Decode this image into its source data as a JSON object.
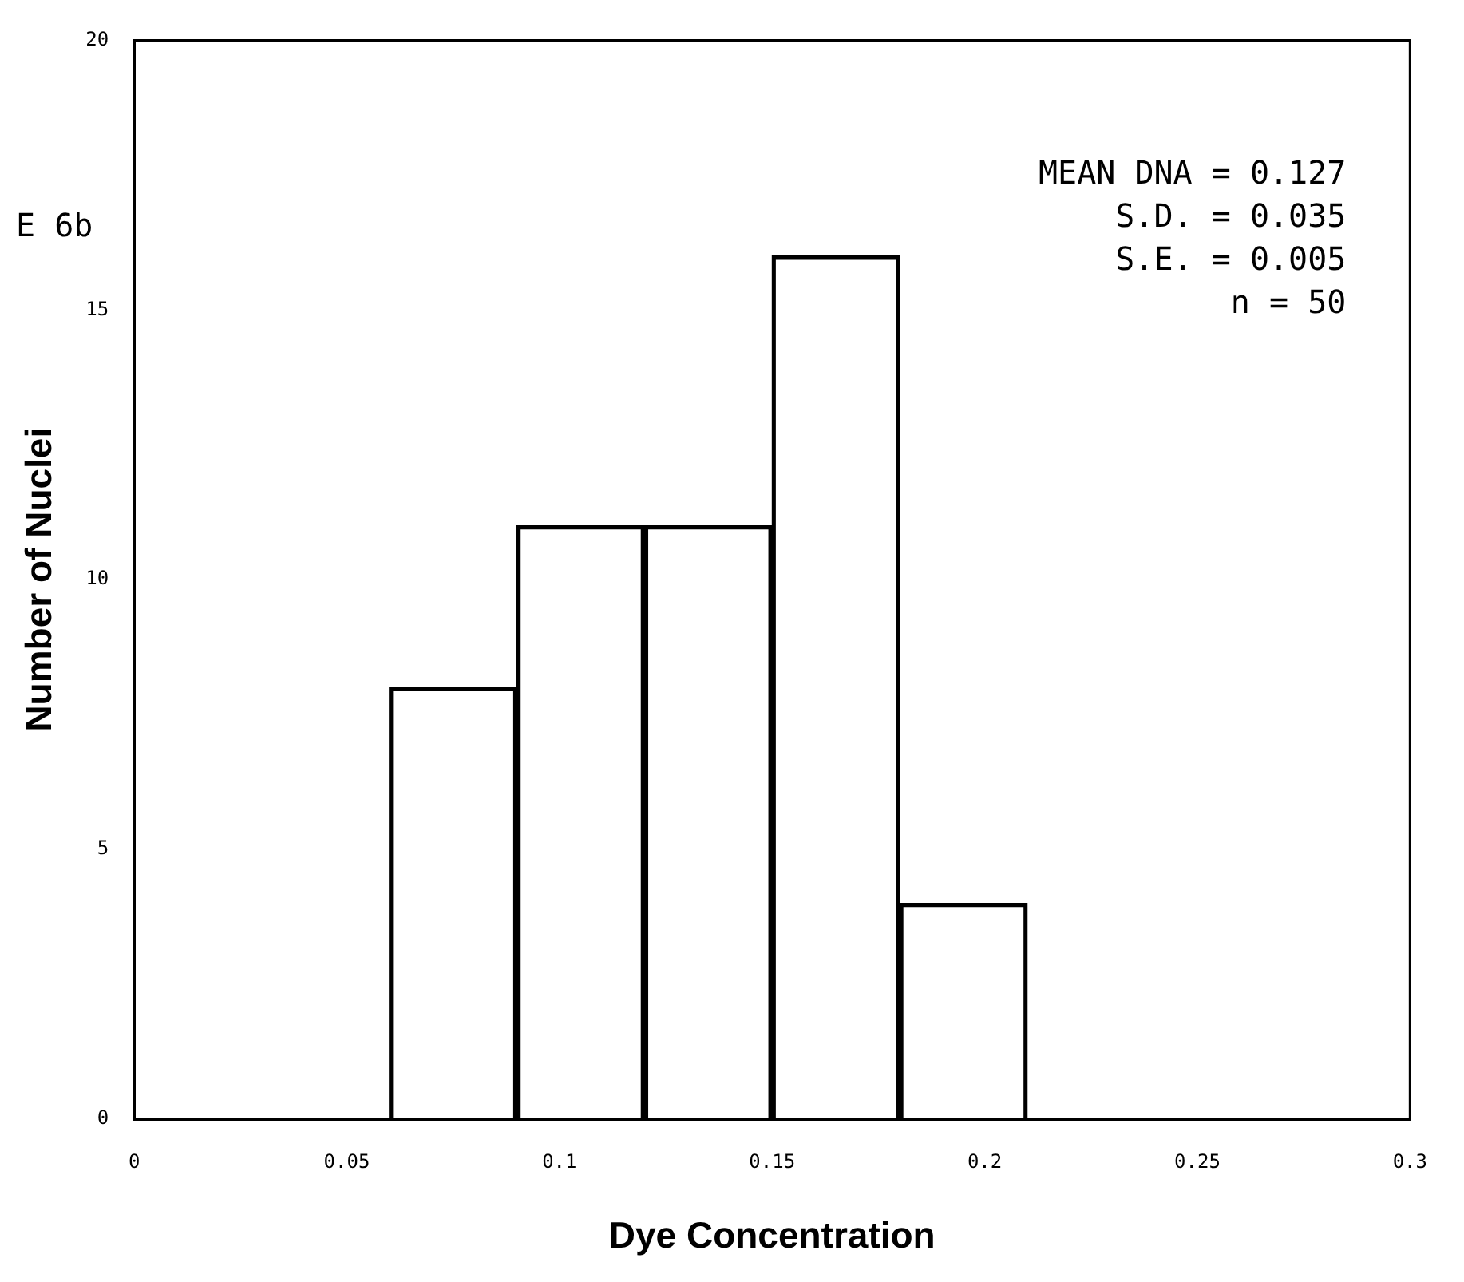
{
  "chart_data": {
    "type": "histogram",
    "xlabel": "Dye Concentration",
    "ylabel": "Number of Nuclei",
    "bins": [
      0.06,
      0.09,
      0.12,
      0.15,
      0.18,
      0.21
    ],
    "values": [
      8,
      11,
      11,
      16,
      4
    ],
    "color": "#000000",
    "xlim": [
      0,
      0.3
    ],
    "xticks": [
      0,
      0.05,
      0.1,
      0.15,
      0.2,
      0.25,
      0.3
    ],
    "ylim": [
      0,
      20
    ],
    "yticks": [
      0,
      5,
      10,
      15,
      20
    ],
    "annotations": [
      "E 6b",
      "MEAN DNA = 0.127",
      "S.D. = 0.035",
      "S.E. = 0.005",
      "n = 50"
    ]
  }
}
